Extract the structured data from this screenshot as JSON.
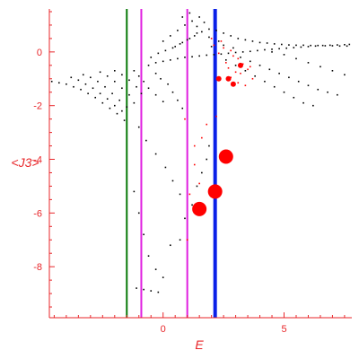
{
  "chart_data": {
    "type": "scatter",
    "title": "",
    "xlabel": "E",
    "ylabel": "<J3>",
    "xlim": [
      -4.7,
      7.8
    ],
    "ylim": [
      -9.9,
      1.6
    ],
    "xticks": [
      0,
      5
    ],
    "yticks": [
      0,
      -2,
      -4,
      -6,
      -8
    ],
    "grid": false,
    "axis_color": "#e8262a",
    "vertical_lines": [
      {
        "x": -1.5,
        "color": "#0a7a0a"
      },
      {
        "x": -0.9,
        "color": "#e020e0"
      },
      {
        "x": 1.0,
        "color": "#e020e0"
      },
      {
        "x": 2.15,
        "color": "#0a20e8"
      }
    ],
    "series": [
      {
        "color": "#000000",
        "marker_size": 1,
        "points": [
          [
            -4.6,
            -1.1
          ],
          [
            -4.3,
            -1.15
          ],
          [
            -4.0,
            -1.2
          ],
          [
            -3.7,
            -1.3
          ],
          [
            -3.4,
            -1.4
          ],
          [
            -3.1,
            -1.55
          ],
          [
            -2.8,
            -1.7
          ],
          [
            -2.5,
            -1.9
          ],
          [
            -2.2,
            -2.1
          ],
          [
            -1.9,
            -2.3
          ],
          [
            -1.6,
            -2.55
          ],
          [
            -3.8,
            -0.95
          ],
          [
            -3.5,
            -1.05
          ],
          [
            -3.2,
            -1.2
          ],
          [
            -2.9,
            -1.35
          ],
          [
            -2.6,
            -1.55
          ],
          [
            -2.3,
            -1.75
          ],
          [
            -2.0,
            -2.0
          ],
          [
            -1.7,
            -2.2
          ],
          [
            -3.3,
            -0.85
          ],
          [
            -3.0,
            -0.95
          ],
          [
            -2.7,
            -1.1
          ],
          [
            -2.4,
            -1.3
          ],
          [
            -2.1,
            -1.55
          ],
          [
            -1.8,
            -1.8
          ],
          [
            -1.5,
            -2.05
          ],
          [
            -2.6,
            -0.75
          ],
          [
            -2.3,
            -0.9
          ],
          [
            -2.0,
            -1.1
          ],
          [
            -1.7,
            -1.35
          ],
          [
            -1.4,
            -1.6
          ],
          [
            -1.2,
            -1.9
          ],
          [
            -2.0,
            -0.7
          ],
          [
            -1.7,
            -0.85
          ],
          [
            -1.4,
            -1.05
          ],
          [
            -1.1,
            -1.3
          ],
          [
            -0.9,
            -1.55
          ],
          [
            -1.2,
            -0.7
          ],
          [
            -1.0,
            -0.9
          ],
          [
            -0.8,
            -1.1
          ],
          [
            -0.6,
            -1.35
          ],
          [
            -0.3,
            -1.6
          ],
          [
            0.0,
            -1.85
          ],
          [
            -0.6,
            -0.5
          ],
          [
            -0.3,
            -0.4
          ],
          [
            0.0,
            -0.35
          ],
          [
            0.3,
            -0.3
          ],
          [
            0.6,
            -0.25
          ],
          [
            0.9,
            -0.2
          ],
          [
            1.2,
            -0.18
          ],
          [
            1.5,
            -0.15
          ],
          [
            1.8,
            -0.12
          ],
          [
            2.1,
            -0.1
          ],
          [
            2.4,
            -0.08
          ],
          [
            2.7,
            -0.05
          ],
          [
            3.0,
            -0.02
          ],
          [
            3.3,
            0.0
          ],
          [
            3.6,
            0.02
          ],
          [
            3.9,
            0.05
          ],
          [
            4.2,
            0.08
          ],
          [
            4.5,
            0.1
          ],
          [
            4.8,
            0.12
          ],
          [
            5.1,
            0.14
          ],
          [
            5.4,
            0.16
          ],
          [
            5.7,
            0.18
          ],
          [
            6.0,
            0.2
          ],
          [
            6.3,
            0.22
          ],
          [
            6.6,
            0.24
          ],
          [
            6.9,
            0.25
          ],
          [
            7.2,
            0.26
          ],
          [
            7.5,
            0.27
          ],
          [
            7.7,
            0.28
          ],
          [
            -0.5,
            -0.2
          ],
          [
            -0.2,
            -0.05
          ],
          [
            0.1,
            0.05
          ],
          [
            0.4,
            0.15
          ],
          [
            0.7,
            0.3
          ],
          [
            1.0,
            0.45
          ],
          [
            1.3,
            0.6
          ],
          [
            1.6,
            0.75
          ],
          [
            1.9,
            0.85
          ],
          [
            0.0,
            0.4
          ],
          [
            0.3,
            0.6
          ],
          [
            0.6,
            0.8
          ],
          [
            0.9,
            1.0
          ],
          [
            1.2,
            1.15
          ],
          [
            1.5,
            1.3
          ],
          [
            0.5,
            0.2
          ],
          [
            0.8,
            0.35
          ],
          [
            1.1,
            0.5
          ],
          [
            1.4,
            0.7
          ],
          [
            2.2,
            0.8
          ],
          [
            2.5,
            0.7
          ],
          [
            2.8,
            0.6
          ],
          [
            3.1,
            0.5
          ],
          [
            3.4,
            0.45
          ],
          [
            3.7,
            0.4
          ],
          [
            4.0,
            0.35
          ],
          [
            4.3,
            0.33
          ],
          [
            4.6,
            0.3
          ],
          [
            4.9,
            0.28
          ],
          [
            5.2,
            0.26
          ],
          [
            5.5,
            0.25
          ],
          [
            5.8,
            0.25
          ],
          [
            6.1,
            0.24
          ],
          [
            6.4,
            0.24
          ],
          [
            6.7,
            0.23
          ],
          [
            7.0,
            0.23
          ],
          [
            7.3,
            0.22
          ],
          [
            7.6,
            0.22
          ],
          [
            2.6,
            -0.3
          ],
          [
            3.0,
            -0.5
          ],
          [
            3.4,
            -0.7
          ],
          [
            3.8,
            -0.9
          ],
          [
            4.2,
            -1.1
          ],
          [
            4.6,
            -1.3
          ],
          [
            5.0,
            -1.5
          ],
          [
            5.4,
            -1.7
          ],
          [
            5.8,
            -1.9
          ],
          [
            6.2,
            -2.0
          ],
          [
            3.2,
            -0.2
          ],
          [
            3.6,
            -0.35
          ],
          [
            4.0,
            -0.5
          ],
          [
            4.4,
            -0.65
          ],
          [
            4.8,
            -0.8
          ],
          [
            5.2,
            -0.95
          ],
          [
            5.6,
            -1.1
          ],
          [
            6.0,
            -1.25
          ],
          [
            6.4,
            -1.4
          ],
          [
            6.8,
            -1.5
          ],
          [
            7.2,
            -1.6
          ],
          [
            4.5,
            0.0
          ],
          [
            5.0,
            -0.1
          ],
          [
            5.5,
            -0.25
          ],
          [
            6.0,
            -0.4
          ],
          [
            6.5,
            -0.55
          ],
          [
            7.0,
            -0.7
          ],
          [
            7.5,
            -0.85
          ],
          [
            0.8,
            1.3
          ],
          [
            1.1,
            1.45
          ],
          [
            1.4,
            0.95
          ],
          [
            1.7,
            1.1
          ],
          [
            1.9,
            0.55
          ],
          [
            2.0,
            0.2
          ],
          [
            2.3,
            0.4
          ],
          [
            2.5,
            0.25
          ],
          [
            2.9,
            0.15
          ],
          [
            -0.3,
            -0.8
          ],
          [
            -0.1,
            -1.0
          ],
          [
            0.2,
            -1.2
          ],
          [
            0.4,
            -1.5
          ],
          [
            0.6,
            -1.8
          ],
          [
            0.8,
            -2.1
          ],
          [
            -1.0,
            -2.8
          ],
          [
            -0.7,
            -3.3
          ],
          [
            -0.3,
            -3.8
          ],
          [
            0.1,
            -4.3
          ],
          [
            0.4,
            -4.8
          ],
          [
            0.7,
            -5.3
          ],
          [
            -1.2,
            -5.2
          ],
          [
            -1.0,
            -6.0
          ],
          [
            -0.8,
            -6.8
          ],
          [
            -0.6,
            -7.6
          ],
          [
            -0.3,
            -8.1
          ],
          [
            0.0,
            -8.4
          ],
          [
            -1.1,
            -8.8
          ],
          [
            -0.8,
            -8.85
          ],
          [
            -0.5,
            -8.9
          ],
          [
            -0.2,
            -8.95
          ],
          [
            0.3,
            -7.2
          ],
          [
            0.7,
            -7.0
          ],
          [
            0.9,
            -6.2
          ],
          [
            1.2,
            -5.7
          ],
          [
            1.4,
            -5.0
          ],
          [
            1.6,
            -4.5
          ],
          [
            1.8,
            -4.0
          ],
          [
            1.9,
            -3.5
          ]
        ]
      },
      {
        "color": "#ff0000",
        "marker_size": 1,
        "points": [
          [
            2.0,
            0.5
          ],
          [
            2.4,
            0.4
          ],
          [
            2.1,
            0.25
          ],
          [
            2.5,
            0.15
          ],
          [
            2.8,
            0.05
          ],
          [
            2.3,
            -0.05
          ],
          [
            2.9,
            -0.15
          ],
          [
            3.1,
            -0.25
          ],
          [
            2.6,
            -0.4
          ],
          [
            3.3,
            -0.45
          ],
          [
            3.6,
            -0.55
          ],
          [
            2.7,
            -0.6
          ],
          [
            3.0,
            -0.75
          ],
          [
            3.2,
            -0.8
          ],
          [
            2.8,
            -0.95
          ],
          [
            3.5,
            -0.65
          ],
          [
            3.7,
            -1.0
          ],
          [
            3.1,
            -1.15
          ],
          [
            3.4,
            -1.25
          ],
          [
            2.2,
            -2.4
          ],
          [
            1.8,
            -2.7
          ],
          [
            1.6,
            -3.2
          ],
          [
            1.3,
            -3.5
          ],
          [
            1.5,
            -4.9
          ],
          [
            1.3,
            -4.2
          ],
          [
            1.1,
            -5.3
          ],
          [
            1.0,
            -7.0
          ],
          [
            0.9,
            -2.5
          ]
        ]
      },
      {
        "color": "#ff0000",
        "marker_size": 3,
        "points": [
          [
            2.7,
            -1.0
          ],
          [
            2.9,
            -1.2
          ],
          [
            3.2,
            -0.5
          ],
          [
            2.3,
            -1.0
          ]
        ]
      },
      {
        "color": "#ff0000",
        "marker_size": 8,
        "points": [
          [
            2.6,
            -3.9
          ],
          [
            1.5,
            -5.85
          ],
          [
            2.15,
            -5.2
          ]
        ]
      }
    ]
  }
}
